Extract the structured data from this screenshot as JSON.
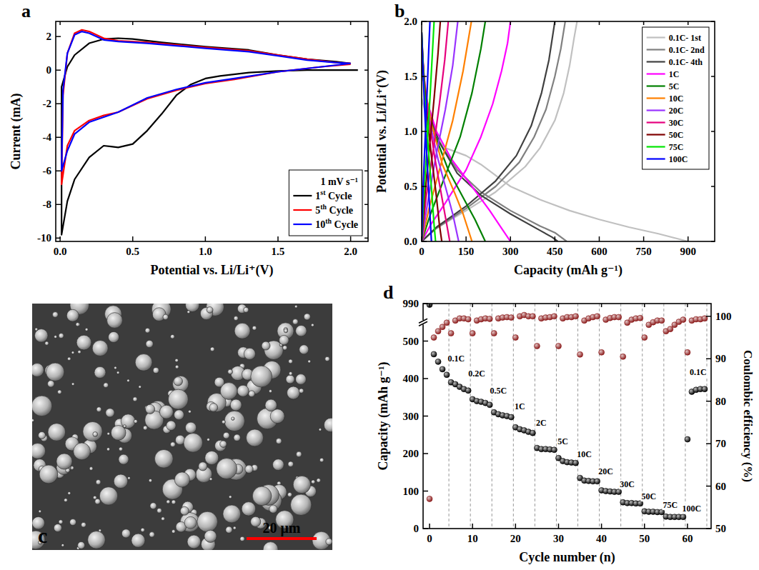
{
  "chart_data": [
    {
      "panel": "a",
      "type": "line",
      "xlabel": "Potential vs. Li/Li⁺(V)",
      "ylabel": "Current (mA)",
      "xlim": [
        -0.03,
        2.12
      ],
      "ylim": [
        -10.2,
        2.9
      ],
      "xticks": [
        {
          "value": 0,
          "label": "0.0"
        },
        {
          "value": 0.5,
          "label": "0.5"
        },
        {
          "value": 1,
          "label": "1.0"
        },
        {
          "value": 1.5,
          "label": "1.5"
        },
        {
          "value": 2,
          "label": "2.0"
        }
      ],
      "yticks": [
        -10,
        -8,
        -6,
        -4,
        -2,
        0,
        2
      ],
      "legend": "lower right",
      "legend_title": "1 mV s⁻¹",
      "line_style": "solid",
      "series": [
        {
          "name": "1st Cycle",
          "color": "#000000",
          "x": [
            2.05,
            1.7,
            1.5,
            1.3,
            1.1,
            1.0,
            0.9,
            0.8,
            0.7,
            0.6,
            0.5,
            0.4,
            0.35,
            0.3,
            0.2,
            0.1,
            0.05,
            0.01,
            0.01,
            0.05,
            0.1,
            0.2,
            0.3,
            0.4,
            0.5,
            0.7,
            1.0,
            1.3,
            1.5,
            1.7,
            1.9,
            2.0
          ],
          "values": [
            0,
            0,
            -0.05,
            -0.15,
            -0.35,
            -0.5,
            -0.85,
            -1.5,
            -2.6,
            -3.6,
            -4.4,
            -4.6,
            -4.55,
            -4.5,
            -5.2,
            -6.5,
            -7.8,
            -9.8,
            -1.0,
            0.2,
            0.9,
            1.6,
            1.85,
            1.9,
            1.85,
            1.65,
            1.4,
            1.2,
            0.9,
            0.65,
            0.5,
            0.4
          ]
        },
        {
          "name": "5th Cycle",
          "color": "#ff0000",
          "x": [
            2.0,
            1.8,
            1.5,
            1.2,
            1.0,
            0.8,
            0.6,
            0.4,
            0.3,
            0.2,
            0.1,
            0.05,
            0.01,
            0.02,
            0.05,
            0.1,
            0.15,
            0.2,
            0.3,
            0.4,
            0.6,
            0.8,
            1.0,
            1.3,
            1.5,
            1.7,
            1.9,
            2.0
          ],
          "values": [
            0.35,
            0.2,
            -0.1,
            -0.55,
            -0.8,
            -1.2,
            -1.7,
            -2.5,
            -2.7,
            -3.0,
            -3.6,
            -4.5,
            -6.8,
            -1.5,
            1.0,
            2.2,
            2.4,
            2.3,
            1.9,
            1.75,
            1.65,
            1.5,
            1.35,
            1.15,
            0.9,
            0.65,
            0.45,
            0.4
          ]
        },
        {
          "name": "10th Cycle",
          "color": "#0000ff",
          "x": [
            2.0,
            1.8,
            1.5,
            1.2,
            1.0,
            0.8,
            0.6,
            0.4,
            0.3,
            0.2,
            0.1,
            0.05,
            0.01,
            0.02,
            0.05,
            0.1,
            0.15,
            0.2,
            0.3,
            0.4,
            0.6,
            0.8,
            1.0,
            1.3,
            1.5,
            1.7,
            1.9,
            2.0
          ],
          "values": [
            0.4,
            0.2,
            -0.1,
            -0.5,
            -0.75,
            -1.15,
            -1.65,
            -2.5,
            -2.8,
            -3.1,
            -3.8,
            -4.8,
            -6.0,
            -1.2,
            1.0,
            2.1,
            2.3,
            2.2,
            1.8,
            1.7,
            1.6,
            1.45,
            1.3,
            1.1,
            0.85,
            0.6,
            0.45,
            0.4
          ]
        }
      ]
    },
    {
      "panel": "b",
      "type": "line",
      "xlabel": "Capacity (mAh g⁻¹)",
      "ylabel": "Potential vs. Li/Li⁺(V)",
      "xlim": [
        0,
        990
      ],
      "ylim": [
        0,
        2.0
      ],
      "xticks": [
        0,
        150,
        300,
        450,
        600,
        750,
        900
      ],
      "yticks": [
        {
          "value": 0,
          "label": "0.0"
        },
        {
          "value": 0.5,
          "label": "0.5"
        },
        {
          "value": 1,
          "label": "1.0"
        },
        {
          "value": 1.5,
          "label": "1.5"
        },
        {
          "value": 2,
          "label": "2.0"
        }
      ],
      "legend": "upper right",
      "line_style": "solid",
      "series": [
        {
          "name": "0.1C- 1st",
          "color": "#c0c0c0",
          "x": [
            0,
            30,
            80,
            150,
            200,
            300,
            400,
            500,
            600,
            700,
            800,
            900,
            null,
            0,
            50,
            150,
            250,
            350,
            400,
            450,
            480,
            500,
            515,
            525
          ],
          "values": [
            1.3,
            1.0,
            0.85,
            0.78,
            0.7,
            0.5,
            0.38,
            0.28,
            0.2,
            0.13,
            0.07,
            0.0,
            null,
            0,
            0.12,
            0.28,
            0.45,
            0.68,
            0.85,
            1.1,
            1.35,
            1.6,
            1.85,
            2.0
          ]
        },
        {
          "name": "0.1C- 2nd",
          "color": "#808080",
          "x": [
            0,
            20,
            60,
            120,
            200,
            300,
            400,
            450,
            490,
            null,
            0,
            50,
            150,
            250,
            330,
            380,
            420,
            450,
            470,
            485
          ],
          "values": [
            1.6,
            1.2,
            0.9,
            0.65,
            0.45,
            0.28,
            0.14,
            0.08,
            0.0,
            null,
            0,
            0.12,
            0.3,
            0.5,
            0.72,
            0.95,
            1.2,
            1.5,
            1.75,
            2.0
          ]
        },
        {
          "name": "0.1C- 4th",
          "color": "#404040",
          "x": [
            0,
            20,
            60,
            120,
            200,
            300,
            400,
            440,
            460,
            null,
            0,
            50,
            150,
            250,
            320,
            370,
            405,
            430,
            450
          ],
          "values": [
            1.6,
            1.2,
            0.9,
            0.62,
            0.42,
            0.25,
            0.1,
            0.04,
            0.0,
            null,
            0,
            0.13,
            0.32,
            0.55,
            0.78,
            1.05,
            1.35,
            1.65,
            2.0
          ]
        },
        {
          "name": "1C",
          "color": "#ff00ff",
          "x": [
            0,
            15,
            50,
            100,
            170,
            230,
            270,
            300,
            null,
            0,
            30,
            80,
            150,
            200,
            240,
            270,
            290,
            300
          ],
          "values": [
            1.75,
            1.3,
            1.0,
            0.75,
            0.5,
            0.28,
            0.12,
            0.0,
            null,
            0,
            0.15,
            0.35,
            0.65,
            0.95,
            1.25,
            1.55,
            1.8,
            2.0
          ]
        },
        {
          "name": "5C",
          "color": "#008000",
          "x": [
            0,
            10,
            40,
            90,
            140,
            180,
            215,
            null,
            0,
            30,
            80,
            130,
            170,
            200,
            215
          ],
          "values": [
            1.75,
            1.35,
            1.0,
            0.65,
            0.4,
            0.2,
            0.0,
            null,
            0,
            0.25,
            0.6,
            0.95,
            1.35,
            1.75,
            2.0
          ]
        },
        {
          "name": "10C",
          "color": "#ff8000",
          "x": [
            0,
            10,
            35,
            70,
            110,
            140,
            170,
            null,
            0,
            25,
            65,
            105,
            140,
            168
          ],
          "values": [
            1.8,
            1.4,
            1.05,
            0.7,
            0.45,
            0.25,
            0.0,
            null,
            0,
            0.3,
            0.7,
            1.1,
            1.55,
            2.0
          ]
        },
        {
          "name": "20C",
          "color": "#9933ff",
          "x": [
            0,
            10,
            30,
            55,
            85,
            105,
            125,
            null,
            0,
            20,
            50,
            80,
            105,
            122
          ],
          "values": [
            1.8,
            1.4,
            1.05,
            0.75,
            0.45,
            0.25,
            0.0,
            null,
            0,
            0.35,
            0.8,
            1.2,
            1.6,
            2.0
          ]
        },
        {
          "name": "30C",
          "color": "#e6007e",
          "x": [
            0,
            8,
            25,
            45,
            65,
            85,
            95,
            null,
            0,
            15,
            40,
            60,
            78,
            90
          ],
          "values": [
            1.85,
            1.5,
            1.1,
            0.75,
            0.45,
            0.15,
            0.0,
            null,
            0,
            0.4,
            0.85,
            1.25,
            1.65,
            2.0
          ]
        },
        {
          "name": "50C",
          "color": "#800000",
          "x": [
            0,
            6,
            18,
            32,
            48,
            60,
            68,
            null,
            0,
            12,
            28,
            42,
            55,
            63
          ],
          "values": [
            1.9,
            1.55,
            1.15,
            0.8,
            0.45,
            0.15,
            0.0,
            null,
            0,
            0.45,
            0.9,
            1.3,
            1.7,
            2.0
          ]
        },
        {
          "name": "75C",
          "color": "#00e600",
          "x": [
            0,
            5,
            13,
            24,
            34,
            42,
            47,
            null,
            0,
            8,
            19,
            29,
            36,
            42
          ],
          "values": [
            1.9,
            1.6,
            1.2,
            0.8,
            0.45,
            0.15,
            0.0,
            null,
            0,
            0.45,
            0.9,
            1.35,
            1.7,
            2.0
          ]
        },
        {
          "name": "100C",
          "color": "#0000ff",
          "x": [
            0,
            4,
            10,
            17,
            24,
            30,
            33,
            null,
            0,
            5,
            12,
            19,
            24,
            28
          ],
          "values": [
            1.9,
            1.6,
            1.2,
            0.8,
            0.45,
            0.15,
            0.0,
            null,
            0,
            0.5,
            0.95,
            1.4,
            1.75,
            2.0
          ]
        }
      ]
    },
    {
      "panel": "c",
      "type": "image",
      "scale_bar": "20 μm"
    },
    {
      "panel": "d",
      "type": "scatter",
      "xlabel": "Cycle number (n)",
      "ylabel": "Capacity (mAh g⁻¹)",
      "y2label": "Coulombic efficiency (%)",
      "xlim": [
        -1.5,
        65.5
      ],
      "ylim": [
        0,
        990
      ],
      "y2lim": [
        50,
        103
      ],
      "xticks": [
        0,
        10,
        20,
        30,
        40,
        50,
        60
      ],
      "yticks": [
        0,
        100,
        200,
        300,
        400,
        500,
        990
      ],
      "y2ticks": [
        50,
        60,
        70,
        80,
        90,
        100
      ],
      "marker": "circle",
      "x": [
        0,
        1,
        2,
        3,
        4,
        5,
        6,
        7,
        8,
        9,
        10,
        11,
        12,
        13,
        14,
        15,
        16,
        17,
        18,
        19,
        20,
        21,
        22,
        23,
        24,
        25,
        26,
        27,
        28,
        29,
        30,
        31,
        32,
        33,
        34,
        35,
        36,
        37,
        38,
        39,
        40,
        41,
        42,
        43,
        44,
        45,
        46,
        47,
        48,
        49,
        50,
        51,
        52,
        53,
        54,
        55,
        56,
        57,
        58,
        59,
        60,
        61,
        62,
        63,
        64
      ],
      "series": [
        {
          "color": "#000000",
          "values": [
            975,
            465,
            445,
            425,
            410,
            390,
            385,
            378,
            372,
            368,
            345,
            340,
            338,
            335,
            330,
            310,
            305,
            302,
            300,
            297,
            270,
            265,
            262,
            258,
            255,
            215,
            212,
            212,
            211,
            210,
            188,
            180,
            177,
            176,
            175,
            135,
            128,
            127,
            126,
            126,
            102,
            100,
            99,
            98,
            98,
            70,
            68,
            68,
            67,
            67,
            46,
            45,
            45,
            44,
            44,
            32,
            31,
            31,
            31,
            31,
            238,
            365,
            370,
            372,
            372
          ]
        },
        {
          "color": "#8b1a1a",
          "axis": "y2",
          "values": [
            57,
            95,
            96.5,
            97.5,
            98.5,
            96,
            99,
            99.5,
            99.5,
            99.3,
            96,
            99,
            99.3,
            99.5,
            99.4,
            96,
            99.5,
            99.7,
            99.8,
            99.7,
            95,
            100,
            100.3,
            100,
            100,
            93,
            99.5,
            99.7,
            99.8,
            100,
            93,
            99.5,
            99.8,
            99.8,
            100,
            91,
            99,
            99.5,
            99.8,
            100,
            91.5,
            99.2,
            99.6,
            99.8,
            99.8,
            90.5,
            98.5,
            99.2,
            99.5,
            99.6,
            95,
            98,
            98.6,
            99,
            99,
            96.5,
            97,
            98,
            98.7,
            99.2,
            91.5,
            99,
            99.3,
            99.3,
            99.5
          ]
        }
      ],
      "annotations": [
        {
          "text": "0.1C",
          "color": "#ff0000",
          "x": 6.2,
          "y": 445
        },
        {
          "text": "0.2C",
          "color": "#008080",
          "x": 11,
          "y": 405
        },
        {
          "text": "0.5C",
          "color": "#800080",
          "x": 16,
          "y": 360
        },
        {
          "text": "1C",
          "color": "#ff8c00",
          "x": 21,
          "y": 318
        },
        {
          "text": "2C",
          "color": "#333333",
          "x": 26,
          "y": 275
        },
        {
          "text": "5C",
          "color": "#008000",
          "x": 31,
          "y": 225
        },
        {
          "text": "10C",
          "color": "#ff8000",
          "x": 36,
          "y": 190
        },
        {
          "text": "20C",
          "color": "#8000ff",
          "x": 41,
          "y": 145
        },
        {
          "text": "30C",
          "color": "#e0007a",
          "x": 46,
          "y": 110
        },
        {
          "text": "50C",
          "color": "#800000",
          "x": 51,
          "y": 78
        },
        {
          "text": "75C",
          "color": "#00a000",
          "x": 56,
          "y": 55
        },
        {
          "text": "100C",
          "color": "#0000ff",
          "x": 61,
          "y": 45
        },
        {
          "text": "0.1C",
          "color": "#ff0000",
          "x": 62.5,
          "y": 410
        }
      ]
    }
  ]
}
